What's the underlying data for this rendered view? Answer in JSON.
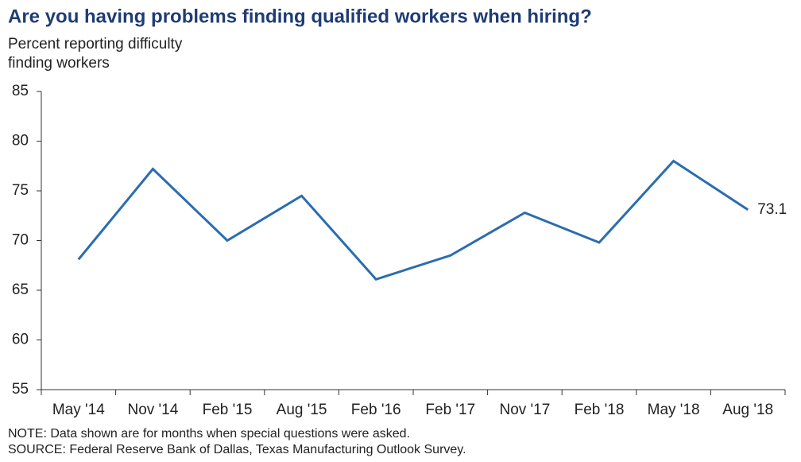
{
  "chart_data": {
    "type": "line",
    "title": "Are you having problems finding qualified workers when hiring?",
    "subtitle": [
      "Percent reporting difficulty",
      "finding workers"
    ],
    "categories": [
      "May '14",
      "Nov '14",
      "Feb '15",
      "Aug '15",
      "Feb '16",
      "Feb '17",
      "Nov '17",
      "Feb '18",
      "May '18",
      "Aug '18"
    ],
    "values": [
      68.1,
      77.2,
      70.0,
      74.5,
      66.1,
      68.5,
      72.8,
      69.8,
      78.0,
      73.1
    ],
    "color": "#2a6db0",
    "ylim": [
      55,
      85
    ],
    "yticks": [
      55,
      60,
      65,
      70,
      75,
      80,
      85
    ],
    "grid": false,
    "notes": [
      "NOTE: Data shown are for months when special questions were asked.",
      "SOURCE: Federal Reserve Bank of Dallas, Texas Manufacturing Outlook Survey."
    ]
  }
}
